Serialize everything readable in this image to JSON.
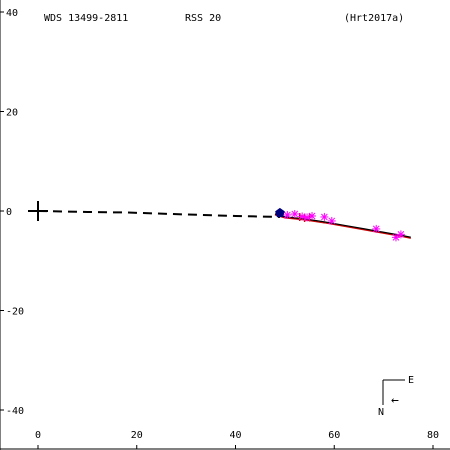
{
  "header": {
    "wds": "WDS 13499-2811",
    "rss": "RSS  20",
    "ref": "(Hrt2017a)"
  },
  "compass": {
    "east_label": "E",
    "north_label": "N",
    "arrow_glyph": "←"
  },
  "colors": {
    "axis": "#000000",
    "orbit": "#000000",
    "residual": "#cc0000",
    "measurement": "#ff00ff",
    "latest_point": "#00007f"
  },
  "chart_data": {
    "type": "scatter",
    "xlim": [
      -7,
      84
    ],
    "ylim": [
      -47,
      43
    ],
    "x_ticks": [
      0,
      20,
      40,
      60,
      80
    ],
    "y_ticks": [
      40,
      20,
      0,
      -20,
      -40
    ],
    "x_tick_labels": [
      "0",
      "20",
      "40",
      "60",
      "80"
    ],
    "y_tick_labels": [
      "40",
      "20",
      "0",
      "-20",
      "-40"
    ],
    "grid": false,
    "primary_marker": {
      "x": 0,
      "y": 0
    },
    "dashed_line": [
      {
        "x": 0,
        "y": 0
      },
      {
        "x": 10,
        "y": -0.2
      },
      {
        "x": 18,
        "y": -0.3
      },
      {
        "x": 30,
        "y": -0.7
      },
      {
        "x": 40,
        "y": -1.0
      },
      {
        "x": 49,
        "y": -1.2
      }
    ],
    "orbit_line": [
      {
        "x": 48,
        "y": -0.6
      },
      {
        "x": 50,
        "y": -1.2
      },
      {
        "x": 54,
        "y": -1.6
      },
      {
        "x": 58,
        "y": -2.2
      },
      {
        "x": 62,
        "y": -2.9
      },
      {
        "x": 66,
        "y": -3.6
      },
      {
        "x": 70,
        "y": -4.3
      },
      {
        "x": 74,
        "y": -5.0
      },
      {
        "x": 75.5,
        "y": -5.3
      }
    ],
    "measurements": [
      {
        "x": 50.5,
        "y": -0.8
      },
      {
        "x": 52.0,
        "y": -0.6
      },
      {
        "x": 53.5,
        "y": -1.1
      },
      {
        "x": 54.5,
        "y": -1.3
      },
      {
        "x": 55.5,
        "y": -1.0
      },
      {
        "x": 58.0,
        "y": -1.2
      },
      {
        "x": 59.5,
        "y": -2.0
      },
      {
        "x": 68.5,
        "y": -3.6
      },
      {
        "x": 72.5,
        "y": -5.3
      },
      {
        "x": 73.5,
        "y": -4.7
      }
    ],
    "residual_marks": [
      {
        "x": 53.0,
        "y": -1.2
      },
      {
        "x": 54.0,
        "y": -1.4
      },
      {
        "x": 55.0,
        "y": -1.3
      }
    ],
    "latest_point": {
      "x": 49.0,
      "y": -0.4
    }
  }
}
